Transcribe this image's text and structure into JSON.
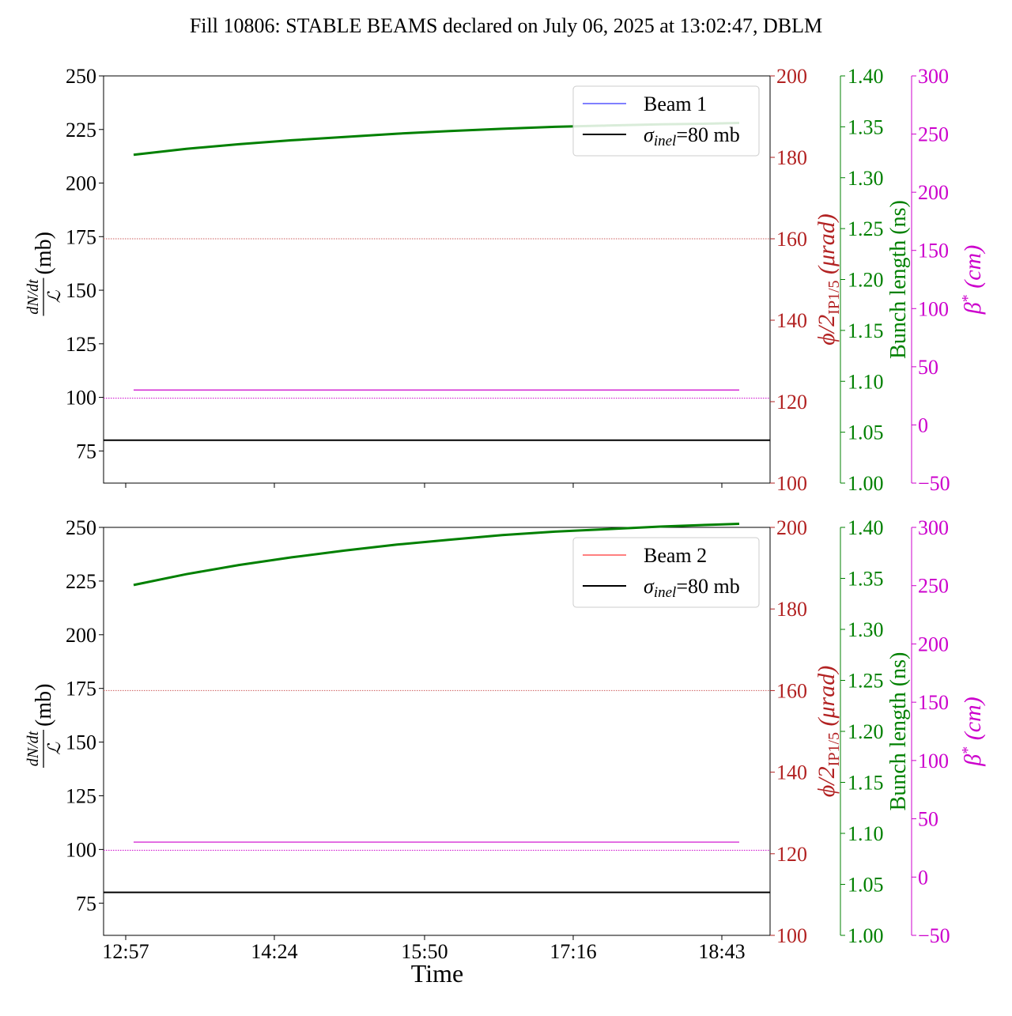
{
  "title": "Fill 10806: STABLE BEAMS declared on July 06, 2025 at 13:02:47, DBLM",
  "colors": {
    "beam1": "#0000ff",
    "beam2": "#ff0000",
    "bunch": "#008000",
    "phi_axis": "#b22222",
    "beta_axis": "#cc00cc",
    "inel": "#000000",
    "phi_ref": "#cd5c5c",
    "beta_ref": "#cc00cc"
  },
  "chart_data": [
    {
      "type": "line",
      "panel": "top",
      "xlabel": "",
      "x_ticks": [
        "12:57",
        "14:24",
        "15:50",
        "17:16",
        "18:43"
      ],
      "ylabel": {
        "frac_num": "dN/dt",
        "frac_den": "ℒ",
        "unit": " (mb)"
      },
      "ylim": [
        60,
        250
      ],
      "y_ticks": [
        "75",
        "100",
        "125",
        "150",
        "175",
        "200",
        "225",
        "250"
      ],
      "phi_axis": {
        "label_a": "ϕ/2",
        "label_sub": "IP1/5",
        "label_b": " (μrad)",
        "ylim": [
          100,
          200
        ],
        "ticks": [
          "100",
          "120",
          "140",
          "160",
          "180",
          "200"
        ]
      },
      "bunch_axis": {
        "label": "Bunch length (ns)",
        "ylim": [
          1.0,
          1.4
        ],
        "ticks": [
          "1.00",
          "1.05",
          "1.10",
          "1.15",
          "1.20",
          "1.25",
          "1.30",
          "1.35",
          "1.40"
        ]
      },
      "beta_axis": {
        "label_a": "β",
        "label_sup": "*",
        "label_b": " (cm)",
        "ylim": [
          -50,
          300
        ],
        "ticks": [
          "−50",
          "0",
          "50",
          "100",
          "150",
          "200",
          "250",
          "300"
        ]
      },
      "legend": {
        "placement": "top-right",
        "entries": [
          {
            "label": "Beam 1",
            "color": "#0000ff"
          },
          {
            "label_a": "σ",
            "label_sub": "inel",
            "label_b": "=80 mb",
            "color": "#000000"
          }
        ]
      },
      "series": [
        {
          "name": "Beam 1",
          "axis": "bunch_length_ns",
          "x_hours": [
            0.0,
            0.5,
            1.0,
            1.5,
            2.0,
            2.5,
            3.0,
            3.5,
            4.0,
            4.5,
            5.0,
            5.5,
            5.75
          ],
          "y": [
            1.3226,
            1.3284,
            1.3329,
            1.3368,
            1.34,
            1.3432,
            1.3458,
            1.348,
            1.35,
            1.3512,
            1.3525,
            1.3532,
            1.3538
          ]
        },
        {
          "name": "phi_ref",
          "axis": "phi_urad",
          "y_const": 160
        },
        {
          "name": "beta_star",
          "axis": "beta_cm",
          "y_const": 30
        },
        {
          "name": "beta_ref",
          "axis": "beta_cm",
          "y_const": 23
        },
        {
          "name": "sigma_inel",
          "axis": "dNdt_mb",
          "y_const": 80
        }
      ]
    },
    {
      "type": "line",
      "panel": "bottom",
      "xlabel": "Time",
      "x_ticks": [
        "12:57",
        "14:24",
        "15:50",
        "17:16",
        "18:43"
      ],
      "ylabel": {
        "frac_num": "dN/dt",
        "frac_den": "ℒ",
        "unit": " (mb)"
      },
      "ylim": [
        60,
        250
      ],
      "y_ticks": [
        "75",
        "100",
        "125",
        "150",
        "175",
        "200",
        "225",
        "250"
      ],
      "phi_axis": {
        "label_a": "ϕ/2",
        "label_sub": "IP1/5",
        "label_b": " (μrad)",
        "ylim": [
          100,
          200
        ],
        "ticks": [
          "100",
          "120",
          "140",
          "160",
          "180",
          "200"
        ]
      },
      "bunch_axis": {
        "label": "Bunch length (ns)",
        "ylim": [
          1.0,
          1.4
        ],
        "ticks": [
          "1.00",
          "1.05",
          "1.10",
          "1.15",
          "1.20",
          "1.25",
          "1.30",
          "1.35",
          "1.40"
        ]
      },
      "beta_axis": {
        "label_a": "β",
        "label_sup": "*",
        "label_b": " (cm)",
        "ylim": [
          -50,
          300
        ],
        "ticks": [
          "−50",
          "0",
          "50",
          "100",
          "150",
          "200",
          "250",
          "300"
        ]
      },
      "legend": {
        "placement": "top-right",
        "entries": [
          {
            "label": "Beam 2",
            "color": "#ff0000"
          },
          {
            "label_a": "σ",
            "label_sub": "inel",
            "label_b": "=80 mb",
            "color": "#000000"
          }
        ]
      },
      "series": [
        {
          "name": "Beam 2",
          "axis": "bunch_length_ns",
          "x_hours": [
            0.0,
            0.5,
            1.0,
            1.5,
            2.0,
            2.5,
            3.0,
            3.5,
            4.0,
            4.5,
            5.0,
            5.5,
            5.75
          ],
          "y": [
            1.3435,
            1.3541,
            1.3631,
            1.3706,
            1.3772,
            1.3831,
            1.3879,
            1.3924,
            1.3958,
            1.3983,
            1.4008,
            1.4026,
            1.4035
          ]
        },
        {
          "name": "phi_ref",
          "axis": "phi_urad",
          "y_const": 160
        },
        {
          "name": "beta_star",
          "axis": "beta_cm",
          "y_const": 30
        },
        {
          "name": "beta_ref",
          "axis": "beta_cm",
          "y_const": 23
        },
        {
          "name": "sigma_inel",
          "axis": "dNdt_mb",
          "y_const": 80
        }
      ]
    }
  ]
}
